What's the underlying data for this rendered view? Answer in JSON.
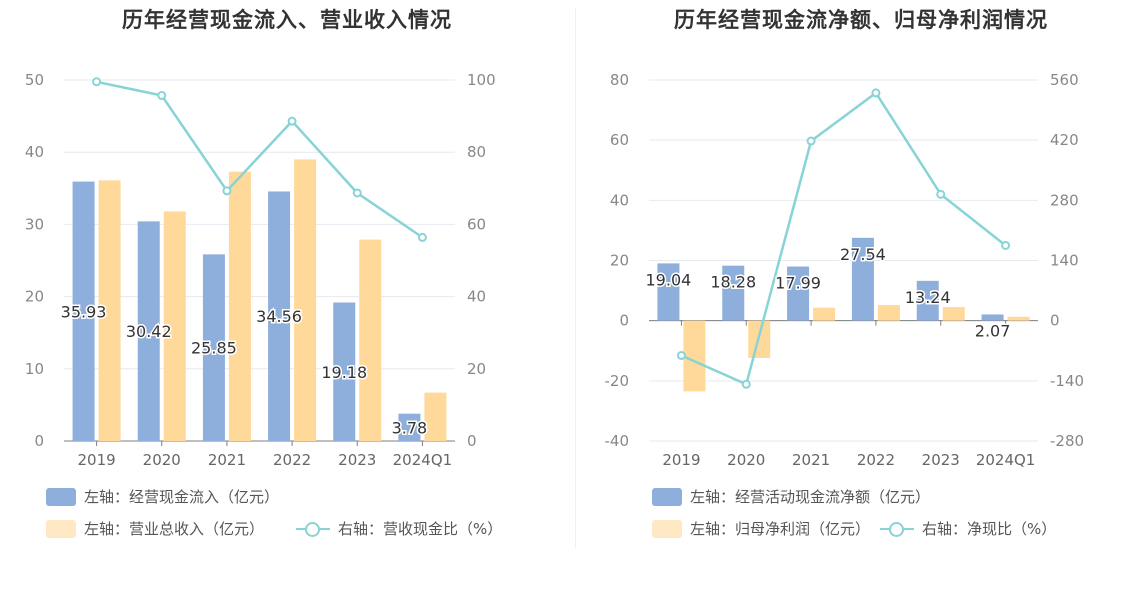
{
  "chart_data": [
    {
      "type": "bar",
      "title": "历年经营现金流入、营业收入情况",
      "categories": [
        "2019",
        "2020",
        "2021",
        "2022",
        "2023",
        "2024Q1"
      ],
      "left_axis": {
        "ylim": [
          0,
          50
        ],
        "ticks": [
          "0",
          "10",
          "20",
          "30",
          "40",
          "50"
        ]
      },
      "right_axis": {
        "ylim": [
          0,
          100
        ],
        "ticks": [
          "0",
          "20",
          "40",
          "60",
          "80",
          "100"
        ]
      },
      "series": [
        {
          "name": "左轴：经营现金流入（亿元）",
          "type": "bar",
          "axis": "left",
          "color": "#8eaedc",
          "values": [
            35.93,
            30.42,
            25.85,
            34.56,
            19.18,
            3.78
          ],
          "labels": [
            "35.93",
            "30.42",
            "25.85",
            "34.56",
            "19.18",
            "3.78"
          ]
        },
        {
          "name": "左轴：营业总收入（亿元）",
          "type": "bar",
          "axis": "left",
          "color": "#ffd99a",
          "values": [
            36.1,
            31.8,
            37.3,
            39.0,
            27.9,
            6.7
          ]
        },
        {
          "name": "右轴：营收现金比（%）",
          "type": "line",
          "axis": "right",
          "color": "#88d3d6",
          "values": [
            99.5,
            95.7,
            69.3,
            88.6,
            68.7,
            56.4
          ]
        }
      ],
      "grid": true,
      "legend_position": "bottom-left"
    },
    {
      "type": "bar",
      "title": "历年经营现金流净额、归母净利润情况",
      "categories": [
        "2019",
        "2020",
        "2021",
        "2022",
        "2023",
        "2024Q1"
      ],
      "left_axis": {
        "ylim": [
          -40,
          80
        ],
        "ticks": [
          "-40",
          "-20",
          "0",
          "20",
          "40",
          "60",
          "80"
        ]
      },
      "right_axis": {
        "ylim": [
          -280,
          560
        ],
        "ticks": [
          "-280",
          "-140",
          "0",
          "140",
          "280",
          "420",
          "560"
        ]
      },
      "series": [
        {
          "name": "左轴：经营活动现金流净额（亿元）",
          "type": "bar",
          "axis": "left",
          "color": "#8eaedc",
          "values": [
            19.04,
            18.28,
            17.99,
            27.54,
            13.24,
            2.07
          ],
          "labels": [
            "19.04",
            "18.28",
            "17.99",
            "27.54",
            "13.24",
            "2.07"
          ]
        },
        {
          "name": "左轴：归母净利润（亿元）",
          "type": "bar",
          "axis": "left",
          "color": "#ffd99a",
          "values": [
            -23.5,
            -12.4,
            4.3,
            5.2,
            4.5,
            1.3
          ]
        },
        {
          "name": "右轴：净现比（%）",
          "type": "line",
          "axis": "right",
          "color": "#88d3d6",
          "values": [
            -81,
            -148,
            418,
            530,
            294,
            175
          ]
        }
      ],
      "grid": true,
      "legend_position": "bottom-left"
    }
  ]
}
